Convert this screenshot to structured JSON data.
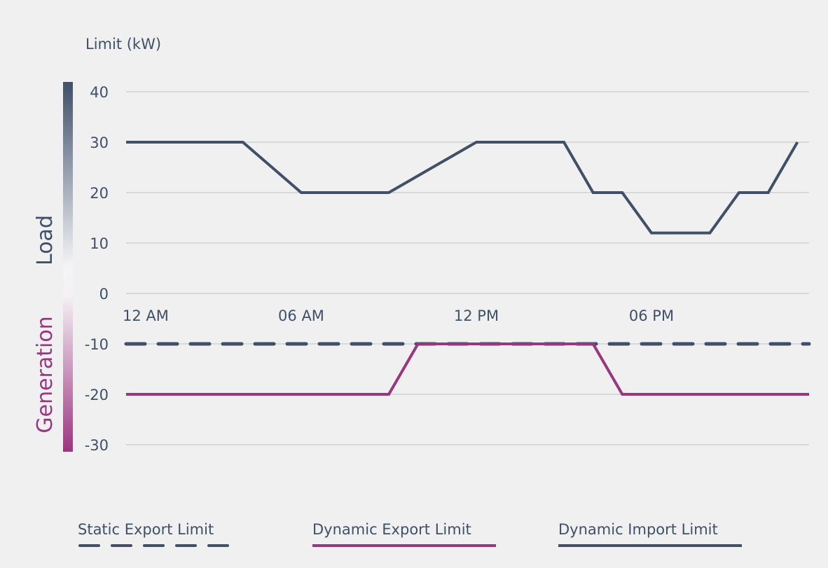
{
  "chart_data": {
    "type": "line",
    "ylabel": "Limit (kW)",
    "ylim": [
      -30,
      40
    ],
    "yticks": [
      40,
      30,
      20,
      10,
      0,
      -10,
      -20,
      -30
    ],
    "xlim": [
      0,
      23.4
    ],
    "xticks": [
      {
        "h": 0,
        "label": "12 AM"
      },
      {
        "h": 6,
        "label": "06 AM"
      },
      {
        "h": 12,
        "label": "12 PM"
      },
      {
        "h": 18,
        "label": "06 PM"
      }
    ],
    "grid": true,
    "colorbar": {
      "top_label": "Load",
      "bottom_label": "Generation",
      "top_color": "#3f5068",
      "bottom_color": "#9b3580"
    },
    "series": [
      {
        "name": "Static Export Limit",
        "color": "#3f5068",
        "style": "dashed",
        "x": [
          0,
          23.4
        ],
        "y": [
          -10,
          -10
        ]
      },
      {
        "name": "Dynamic Export Limit",
        "color": "#9b3580",
        "style": "solid",
        "x": [
          0,
          9,
          10,
          16,
          17,
          23.4
        ],
        "y": [
          -20,
          -20,
          -10,
          -10,
          -20,
          -20
        ]
      },
      {
        "name": "Dynamic Import Limit",
        "color": "#3f5068",
        "style": "solid",
        "x": [
          0,
          4,
          6,
          9,
          12,
          15,
          16,
          17,
          18,
          20,
          21,
          22,
          23
        ],
        "y": [
          30,
          30,
          20,
          20,
          30,
          30,
          20,
          20,
          12,
          12,
          20,
          20,
          30
        ]
      }
    ],
    "legend_position": "bottom"
  }
}
